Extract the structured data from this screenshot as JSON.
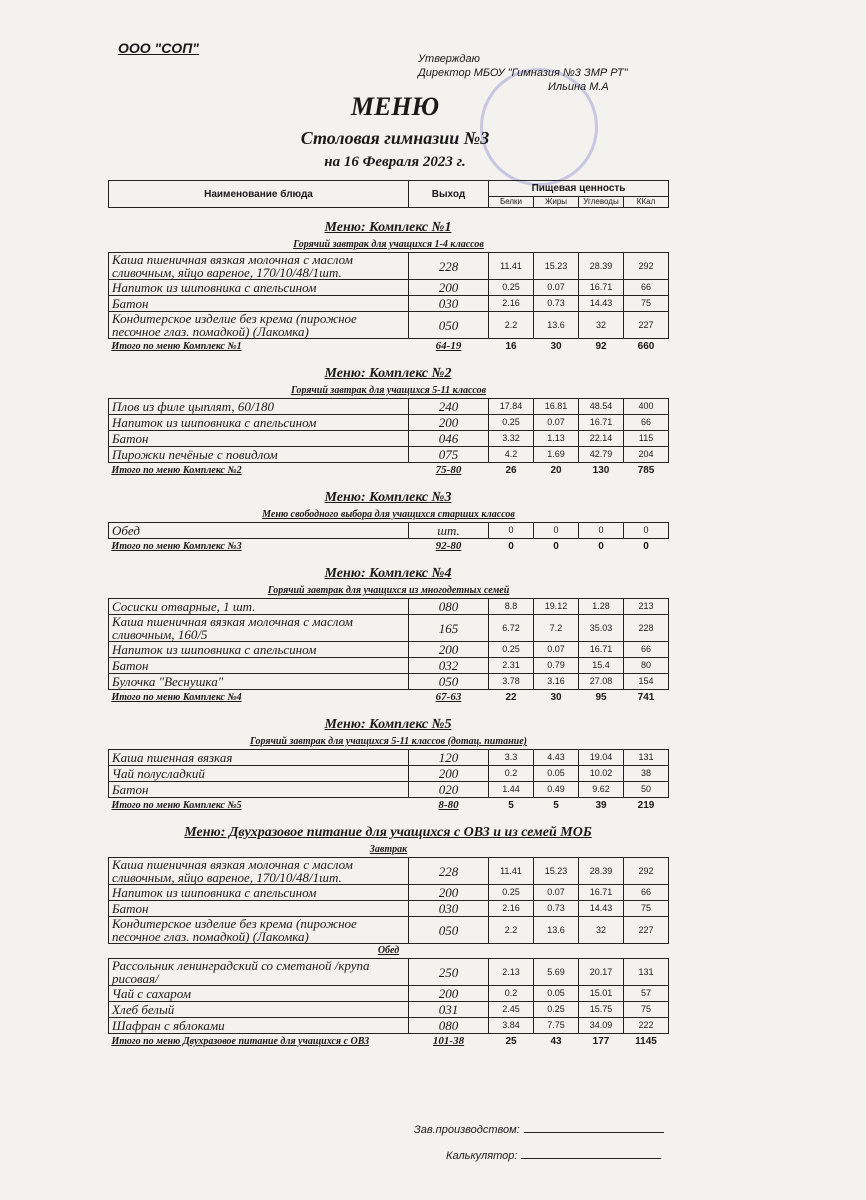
{
  "header": {
    "org": "ООО \"СОП\"",
    "approve": [
      "Утверждаю",
      "Директор МБОУ \"Гимназия №3 ЗМР РТ\"",
      "Ильина М.А"
    ],
    "title": "МЕНЮ",
    "subtitle": "Столовая гимназии №3",
    "date": "на 16 Февраля 2023 г."
  },
  "table_header": {
    "name": "Наименование блюда",
    "output": "Выход",
    "nutrition": "Пищевая ценность",
    "columns": [
      "Белки",
      "Жиры",
      "Углеводы",
      "ККал"
    ]
  },
  "sections": [
    {
      "title": "Меню: Комплекс №1",
      "groups": [
        {
          "subtitle": "Горячий завтрак для учащихся 1-4 классов",
          "rows": [
            [
              "Каша пшеничная вязкая молочная с маслом сливочным, яйцо вареное, 170/10/48/1шт.",
              "228",
              "11.41",
              "15.23",
              "28.39",
              "292"
            ],
            [
              "Напиток из шиповника с апельсином",
              "200",
              "0.25",
              "0.07",
              "16.71",
              "66"
            ],
            [
              "Батон",
              "030",
              "2.16",
              "0.73",
              "14.43",
              "75"
            ],
            [
              "Кондитерское изделие без крема (пирожное песочное глаз. помадкой) (Лакомка)",
              "050",
              "2.2",
              "13.6",
              "32",
              "227"
            ]
          ]
        }
      ],
      "total": [
        "Итого по меню Комплекс №1",
        "64-19",
        "16",
        "30",
        "92",
        "660"
      ]
    },
    {
      "title": "Меню: Комплекс №2",
      "groups": [
        {
          "subtitle": "Горячий завтрак для учащихся 5-11 классов",
          "rows": [
            [
              "Плов из филе цыплят, 60/180",
              "240",
              "17.84",
              "16.81",
              "48.54",
              "400"
            ],
            [
              "Напиток из шиповника с апельсином",
              "200",
              "0.25",
              "0.07",
              "16.71",
              "66"
            ],
            [
              "Батон",
              "046",
              "3.32",
              "1.13",
              "22.14",
              "115"
            ],
            [
              "Пирожки печёные с повидлом",
              "075",
              "4.2",
              "1.69",
              "42.79",
              "204"
            ]
          ]
        }
      ],
      "total": [
        "Итого по меню Комплекс №2",
        "75-80",
        "26",
        "20",
        "130",
        "785"
      ]
    },
    {
      "title": "Меню: Комплекс №3",
      "groups": [
        {
          "subtitle": "Меню свободного выбора для учащихся старших классов",
          "rows": [
            [
              "Обед",
              "шт.",
              "0",
              "0",
              "0",
              "0"
            ]
          ]
        }
      ],
      "total": [
        "Итого по меню Комплекс №3",
        "92-80",
        "0",
        "0",
        "0",
        "0"
      ]
    },
    {
      "title": "Меню: Комплекс №4",
      "groups": [
        {
          "subtitle": "Горячий завтрак для учащихся из многодетных семей",
          "rows": [
            [
              "Сосиски  отварные, 1 шт.",
              "080",
              "8.8",
              "19.12",
              "1.28",
              "213"
            ],
            [
              "Каша пшеничная вязкая молочная с маслом сливочным, 160/5",
              "165",
              "6.72",
              "7.2",
              "35.03",
              "228"
            ],
            [
              "Напиток из шиповника с апельсином",
              "200",
              "0.25",
              "0.07",
              "16.71",
              "66"
            ],
            [
              "Батон",
              "032",
              "2.31",
              "0.79",
              "15.4",
              "80"
            ],
            [
              "Булочка \"Веснушка\"",
              "050",
              "3.78",
              "3.16",
              "27.08",
              "154"
            ]
          ]
        }
      ],
      "total": [
        "Итого по меню Комплекс №4",
        "67-63",
        "22",
        "30",
        "95",
        "741"
      ]
    },
    {
      "title": "Меню: Комплекс №5",
      "groups": [
        {
          "subtitle": "Горячий завтрак для учащихся 5-11 классов (дотац. питание)",
          "rows": [
            [
              "Каша пшенная вязкая",
              "120",
              "3.3",
              "4.43",
              "19.04",
              "131"
            ],
            [
              "Чай полусладкий",
              "200",
              "0.2",
              "0.05",
              "10.02",
              "38"
            ],
            [
              "Батон",
              "020",
              "1.44",
              "0.49",
              "9.62",
              "50"
            ]
          ]
        }
      ],
      "total": [
        "Итого по меню Комплекс №5",
        "8-80",
        "5",
        "5",
        "39",
        "219"
      ]
    },
    {
      "title": "Меню: Двухразовое питание для учащихся с ОВЗ и из семей МОБ",
      "groups": [
        {
          "subtitle": "Завтрак",
          "rows": [
            [
              "Каша пшеничная вязкая молочная с маслом сливочным, яйцо вареное, 170/10/48/1шт.",
              "228",
              "11.41",
              "15.23",
              "28.39",
              "292"
            ],
            [
              "Напиток из шиповника с апельсином",
              "200",
              "0.25",
              "0.07",
              "16.71",
              "66"
            ],
            [
              "Батон",
              "030",
              "2.16",
              "0.73",
              "14.43",
              "75"
            ],
            [
              "Кондитерское изделие без крема (пирожное песочное глаз. помадкой) (Лакомка)",
              "050",
              "2.2",
              "13.6",
              "32",
              "227"
            ]
          ]
        },
        {
          "subtitle": "Обед",
          "rows": [
            [
              "Рассольник ленинградский со сметаной /крупа рисовая/",
              "250",
              "2.13",
              "5.69",
              "20.17",
              "131"
            ],
            [
              "Чай с сахаром",
              "200",
              "0.2",
              "0.05",
              "15.01",
              "57"
            ],
            [
              "Хлеб белый",
              "031",
              "2.45",
              "0.25",
              "15.75",
              "75"
            ],
            [
              "Шафран с яблоками",
              "080",
              "3.84",
              "7.75",
              "34.09",
              "222"
            ]
          ]
        }
      ],
      "total": [
        "Итого по меню Двухразовое питание для учащихся с ОВЗ",
        "101-38",
        "25",
        "43",
        "177",
        "1145"
      ]
    }
  ],
  "footer": {
    "manager": "Зав.производством:",
    "calculator": "Калькулятор:"
  }
}
